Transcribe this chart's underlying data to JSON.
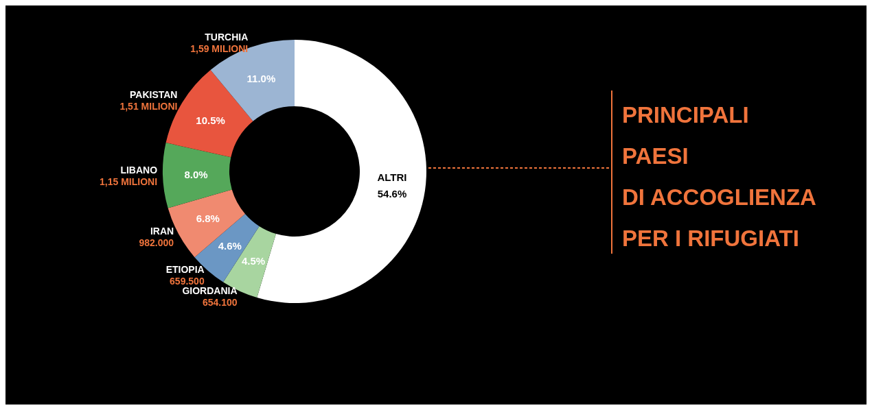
{
  "chart_data": {
    "type": "donut",
    "title": "PRINCIPALI\nPAESI\nDI ACCOGLIENZA\nPER I RIFUGIATI",
    "categories": [
      "ALTRI",
      "GIORDANIA",
      "ETIOPIA",
      "IRAN",
      "LIBANO",
      "PAKISTAN",
      "TURCHIA"
    ],
    "values": [
      54.6,
      4.5,
      4.6,
      6.8,
      8.0,
      10.5,
      11.0
    ],
    "colors": [
      "#ffffff",
      "#a8d5a0",
      "#6b97c4",
      "#f08a70",
      "#55a85a",
      "#e8553e",
      "#9cb5d3"
    ],
    "value_labels": [
      "54.6%",
      "4.5%",
      "4.6%",
      "6.8%",
      "8.0%",
      "10.5%",
      "11.0%"
    ],
    "annotations": [
      null,
      "654.100",
      "659.500",
      "982.000",
      "1,15 MILIONI",
      "1,51 MILIONI",
      "1,59 MILIONI"
    ]
  }
}
